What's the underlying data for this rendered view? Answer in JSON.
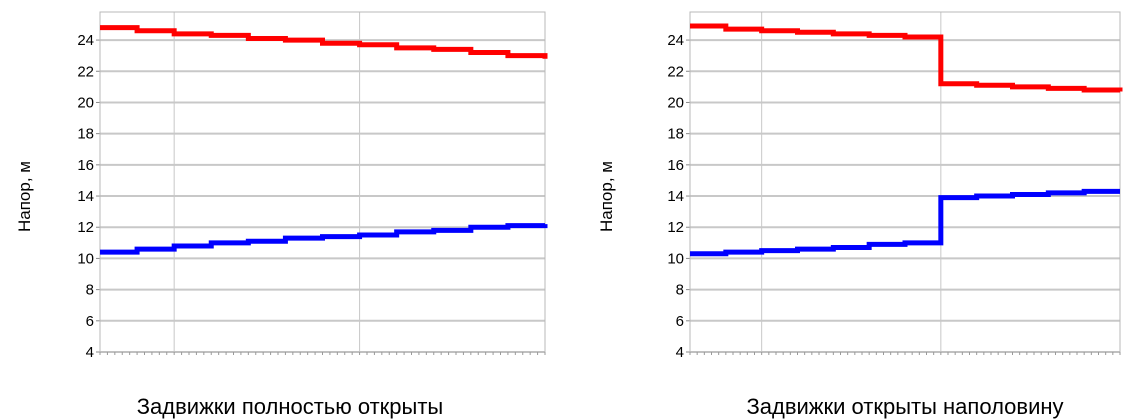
{
  "chart_data": [
    {
      "type": "line",
      "title": "",
      "caption": "Задвижки полностью открыты",
      "xlabel": "",
      "ylabel": "Напор, м",
      "ylim": [
        4,
        25.8
      ],
      "yticks": [
        4,
        6,
        8,
        10,
        12,
        14,
        16,
        18,
        20,
        22,
        24
      ],
      "xlim": [
        0,
        12
      ],
      "vgrid": [
        2,
        7
      ],
      "grid": true,
      "colors": {
        "series_1": "#ff0000",
        "series_2": "#0000ff"
      },
      "series": [
        {
          "values": [
            [
              0,
              24.8
            ],
            [
              1,
              24.6
            ],
            [
              2,
              24.4
            ],
            [
              3,
              24.3
            ],
            [
              4,
              24.1
            ],
            [
              5,
              24.0
            ],
            [
              6,
              23.8
            ],
            [
              7,
              23.7
            ],
            [
              8,
              23.5
            ],
            [
              9,
              23.4
            ],
            [
              10,
              23.2
            ],
            [
              11,
              23.0
            ],
            [
              12,
              22.8
            ]
          ]
        },
        {
          "values": [
            [
              0,
              10.4
            ],
            [
              1,
              10.6
            ],
            [
              2,
              10.8
            ],
            [
              3,
              11.0
            ],
            [
              4,
              11.1
            ],
            [
              5,
              11.3
            ],
            [
              6,
              11.4
            ],
            [
              7,
              11.5
            ],
            [
              8,
              11.7
            ],
            [
              9,
              11.8
            ],
            [
              10,
              12.0
            ],
            [
              11,
              12.1
            ],
            [
              12,
              12.2
            ]
          ]
        }
      ]
    },
    {
      "type": "line",
      "title": "",
      "caption": "Задвижки открыты наполовину",
      "xlabel": "",
      "ylabel": "Напор, м",
      "ylim": [
        4,
        25.8
      ],
      "yticks": [
        4,
        6,
        8,
        10,
        12,
        14,
        16,
        18,
        20,
        22,
        24
      ],
      "xlim": [
        0,
        12
      ],
      "vgrid": [
        2,
        7
      ],
      "grid": true,
      "colors": {
        "series_1": "#ff0000",
        "series_2": "#0000ff"
      },
      "series": [
        {
          "values": [
            [
              0,
              24.9
            ],
            [
              1,
              24.7
            ],
            [
              2,
              24.6
            ],
            [
              3,
              24.5
            ],
            [
              4,
              24.4
            ],
            [
              5,
              24.3
            ],
            [
              6,
              24.2
            ],
            [
              7,
              21.2
            ],
            [
              8,
              21.1
            ],
            [
              9,
              21.0
            ],
            [
              10,
              20.9
            ],
            [
              11,
              20.8
            ],
            [
              12,
              20.7
            ]
          ]
        },
        {
          "values": [
            [
              0,
              10.3
            ],
            [
              1,
              10.4
            ],
            [
              2,
              10.5
            ],
            [
              3,
              10.6
            ],
            [
              4,
              10.7
            ],
            [
              5,
              10.9
            ],
            [
              6,
              11.0
            ],
            [
              7,
              13.9
            ],
            [
              8,
              14.0
            ],
            [
              9,
              14.1
            ],
            [
              10,
              14.2
            ],
            [
              11,
              14.3
            ],
            [
              12,
              14.3
            ]
          ]
        }
      ]
    }
  ]
}
